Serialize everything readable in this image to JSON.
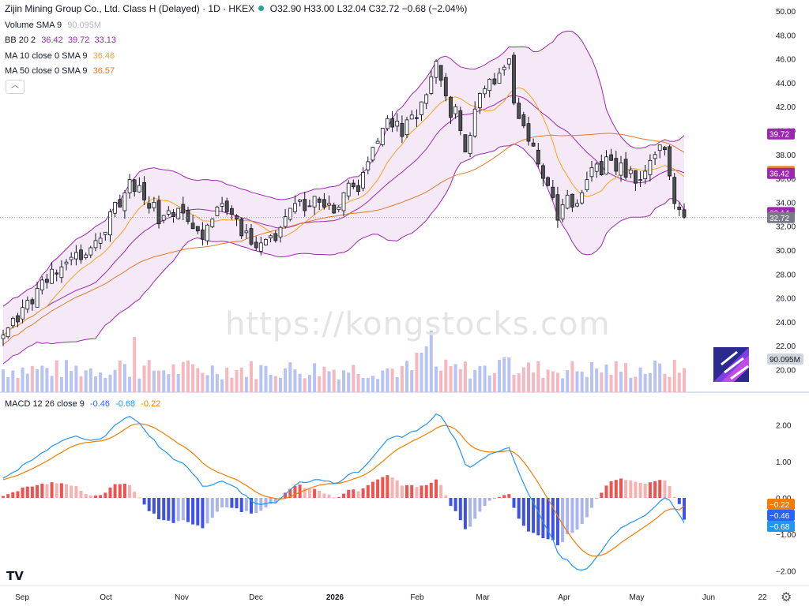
{
  "header": {
    "symbol_title": "Zijin Mining Group Co., Ltd. Class H (Delayed) · 1D · HKEX",
    "ohlc": {
      "o": "O32.90",
      "h": "H33.00",
      "l": "L32.04",
      "c": "C32.72",
      "chg": "−0.68 (−2.04%)"
    }
  },
  "legends": {
    "volume": {
      "name": "Volume SMA 9",
      "value": "90.095M",
      "color": "#b2b5be"
    },
    "bb": {
      "name": "BB 20 2",
      "values": "36.42  39.72  33.13",
      "color": "#9c27b0"
    },
    "ma10": {
      "name": "MA 10 close 0 SMA 9",
      "value": "36.46",
      "color": "#f7a21b"
    },
    "ma50": {
      "name": "MA 50 close 0 SMA 9",
      "value": "36.57",
      "color": "#e07a2c"
    },
    "macd": {
      "name": "MACD 12 26 close 9",
      "v1": "-0.46",
      "v2": "-0.68",
      "v3": "-0.22",
      "c1": "#2962ff",
      "c2": "#2196f3",
      "c3": "#f57c00"
    }
  },
  "watermark": "https://kongstocks.com",
  "logo": "TV",
  "icons": {
    "settings": "gear-icon",
    "collapse": "chevron-up-icon",
    "sponsor": "kongstocks-logo-icon"
  },
  "chart_data": {
    "type": "candlestick",
    "price_axis": {
      "ticks": [
        "50.00",
        "48.00",
        "46.00",
        "44.00",
        "42.00",
        "40.00",
        "38.00",
        "36.00",
        "34.00",
        "32.00",
        "30.00",
        "28.00",
        "26.00",
        "24.00",
        "22.00",
        "20.00"
      ],
      "range": [
        19.0,
        50.5
      ]
    },
    "macd_axis": {
      "ticks": [
        "2.00",
        "1.00",
        "0.00",
        "-1.00",
        "-2.00"
      ],
      "range": [
        -2.2,
        2.6
      ]
    },
    "x_labels": [
      "Sep",
      "Oct",
      "Nov",
      "Dec",
      "2026",
      "Feb",
      "Mar",
      "Apr",
      "May",
      "Jun",
      "22"
    ],
    "price_labels": [
      {
        "text": "39.72",
        "value": 39.72,
        "color": "#9c27b0"
      },
      {
        "text": "36.58",
        "value": 36.58,
        "color": "#f57c00"
      },
      {
        "text": "36.46",
        "value": 36.46,
        "color": "#f7a21b"
      },
      {
        "text": "36.42",
        "value": 36.42,
        "color": "#9c27b0"
      },
      {
        "text": "33.14",
        "value": 33.14,
        "color": "#9c27b0"
      },
      {
        "text": "32.72",
        "value": 32.72,
        "color": "#787b86"
      }
    ],
    "volume_label": {
      "text": "90.095M",
      "color": "#b2b5be"
    },
    "macd_labels": [
      {
        "text": "−0.22",
        "value": -0.22,
        "color": "#f57c00"
      },
      {
        "text": "−0.46",
        "value": -0.46,
        "color": "#2962ff"
      },
      {
        "text": "−0.68",
        "value": -0.68,
        "color": "#2196f3"
      }
    ],
    "closes": [
      22.9,
      23.5,
      24.3,
      24.0,
      25.2,
      25.8,
      25.5,
      26.8,
      27.5,
      27.3,
      28.4,
      28.0,
      28.6,
      29.0,
      29.4,
      29.8,
      29.2,
      29.6,
      30.2,
      30.8,
      31.0,
      31.5,
      33.2,
      34.0,
      33.6,
      34.8,
      35.9,
      34.9,
      35.4,
      34.2,
      33.5,
      34.0,
      32.2,
      32.9,
      33.3,
      32.8,
      33.5,
      33.1,
      32.4,
      31.8,
      31.6,
      30.9,
      32.1,
      32.6,
      33.6,
      33.9,
      33.2,
      33.0,
      32.6,
      31.2,
      31.6,
      30.5,
      30.2,
      30.6,
      30.9,
      31.2,
      30.8,
      31.9,
      32.8,
      33.5,
      33.9,
      34.2,
      33.3,
      33.7,
      34.5,
      34.0,
      33.6,
      33.9,
      33.1,
      33.6,
      34.8,
      35.6,
      35.3,
      34.9,
      36.5,
      37.4,
      38.6,
      39.1,
      40.2,
      41.0,
      40.3,
      40.8,
      39.5,
      40.9,
      41.3,
      41.0,
      42.4,
      43.0,
      44.5,
      45.8,
      44.2,
      42.9,
      41.1,
      42.0,
      40.0,
      38.2,
      39.6,
      41.8,
      43.1,
      43.5,
      44.3,
      43.9,
      44.8,
      45.3,
      46.0,
      42.3,
      41.0,
      40.4,
      39.1,
      38.7,
      37.2,
      36.0,
      35.4,
      34.4,
      32.5,
      33.8,
      34.6,
      33.6,
      33.9,
      34.8,
      35.9,
      36.9,
      37.2,
      36.3,
      37.8,
      37.5,
      36.6,
      37.3,
      36.1,
      36.7,
      35.6,
      35.9,
      36.6,
      37.5,
      38.0,
      38.8,
      38.4,
      36.2,
      33.9,
      33.4,
      32.72
    ],
    "macd": [
      0.54,
      0.62,
      0.7,
      0.76,
      0.9,
      0.98,
      1.04,
      1.14,
      1.24,
      1.3,
      1.42,
      1.48,
      1.56,
      1.62,
      1.66,
      1.7,
      1.64,
      1.6,
      1.58,
      1.6,
      1.62,
      1.7,
      1.86,
      2.0,
      2.08,
      2.18,
      2.24,
      2.15,
      2.05,
      1.88,
      1.7,
      1.6,
      1.4,
      1.3,
      1.2,
      1.06,
      1.0,
      0.95,
      0.82,
      0.66,
      0.52,
      0.32,
      0.32,
      0.36,
      0.42,
      0.46,
      0.4,
      0.34,
      0.28,
      0.12,
      0.06,
      -0.08,
      -0.16,
      -0.18,
      -0.16,
      -0.12,
      -0.14,
      -0.02,
      0.1,
      0.22,
      0.34,
      0.44,
      0.42,
      0.44,
      0.5,
      0.5,
      0.46,
      0.46,
      0.4,
      0.42,
      0.52,
      0.64,
      0.7,
      0.7,
      0.82,
      0.96,
      1.12,
      1.28,
      1.44,
      1.6,
      1.66,
      1.7,
      1.66,
      1.74,
      1.82,
      1.84,
      1.94,
      2.02,
      2.14,
      2.3,
      2.24,
      2.04,
      1.78,
      1.6,
      1.28,
      0.92,
      0.84,
      0.92,
      1.02,
      1.1,
      1.2,
      1.24,
      1.28,
      1.34,
      1.38,
      1.04,
      0.7,
      0.4,
      0.1,
      -0.12,
      -0.38,
      -0.66,
      -0.9,
      -1.14,
      -1.5,
      -1.66,
      -1.7,
      -1.86,
      -1.96,
      -1.98,
      -1.94,
      -1.8,
      -1.62,
      -1.46,
      -1.26,
      -1.08,
      -0.96,
      -0.82,
      -0.76,
      -0.68,
      -0.62,
      -0.55,
      -0.48,
      -0.36,
      -0.24,
      -0.1,
      0.0,
      -0.06,
      -0.28,
      -0.46,
      -0.68
    ],
    "signal": [
      0.5,
      0.54,
      0.58,
      0.62,
      0.68,
      0.74,
      0.8,
      0.87,
      0.94,
      1.01,
      1.09,
      1.17,
      1.25,
      1.33,
      1.4,
      1.45,
      1.49,
      1.52,
      1.53,
      1.55,
      1.56,
      1.59,
      1.64,
      1.71,
      1.79,
      1.88,
      1.97,
      2.02,
      2.04,
      2.02,
      1.98,
      1.93,
      1.85,
      1.77,
      1.68,
      1.59,
      1.49,
      1.42,
      1.33,
      1.22,
      1.1,
      0.96,
      0.86,
      0.78,
      0.71,
      0.66,
      0.6,
      0.55,
      0.5,
      0.42,
      0.34,
      0.25,
      0.16,
      0.09,
      0.04,
      0.01,
      -0.02,
      -0.03,
      -0.01,
      0.03,
      0.09,
      0.16,
      0.21,
      0.26,
      0.31,
      0.35,
      0.37,
      0.39,
      0.39,
      0.4,
      0.43,
      0.47,
      0.52,
      0.56,
      0.62,
      0.69,
      0.78,
      0.89,
      1.0,
      1.12,
      1.23,
      1.33,
      1.4,
      1.47,
      1.55,
      1.61,
      1.68,
      1.75,
      1.82,
      1.91,
      1.97,
      1.99,
      1.95,
      1.88,
      1.75,
      1.58,
      1.45,
      1.36,
      1.31,
      1.27,
      1.26,
      1.26,
      1.26,
      1.28,
      1.3,
      1.25,
      1.14,
      0.99,
      0.81,
      0.62,
      0.41,
      0.19,
      -0.03,
      -0.25,
      -0.5,
      -0.73,
      -0.93,
      -1.12,
      -1.29,
      -1.43,
      -1.53,
      -1.59,
      -1.6,
      -1.57,
      -1.52,
      -1.43,
      -1.34,
      -1.23,
      -1.14,
      -1.05,
      -0.96,
      -0.87,
      -0.78,
      -0.69,
      -0.59,
      -0.48,
      -0.37,
      -0.31,
      -0.3,
      -0.33,
      -0.22
    ],
    "volume_scale_note": "relative"
  }
}
